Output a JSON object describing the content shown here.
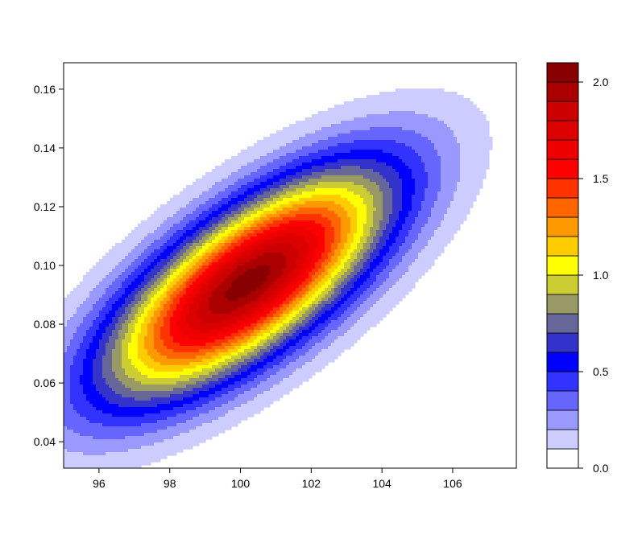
{
  "chart_data": {
    "type": "filled-contour",
    "title": "",
    "xlabel": "",
    "ylabel": "",
    "xlim": [
      95,
      107.8
    ],
    "ylim": [
      0.031,
      0.169
    ],
    "x_ticks": [
      {
        "value": 96,
        "label": "96"
      },
      {
        "value": 98,
        "label": "98"
      },
      {
        "value": 100,
        "label": "100"
      },
      {
        "value": 102,
        "label": "102"
      },
      {
        "value": 104,
        "label": "104"
      },
      {
        "value": 106,
        "label": "106"
      }
    ],
    "y_ticks": [
      {
        "value": 0.04,
        "label": "0.04"
      },
      {
        "value": 0.06,
        "label": "0.06"
      },
      {
        "value": 0.08,
        "label": "0.08"
      },
      {
        "value": 0.1,
        "label": "0.10"
      },
      {
        "value": 0.12,
        "label": "0.12"
      },
      {
        "value": 0.14,
        "label": "0.14"
      },
      {
        "value": 0.16,
        "label": "0.16"
      }
    ],
    "density": {
      "peak_x": 100.2,
      "peak_y": 0.094,
      "peak_value": 2.05,
      "sd_x": 2.8,
      "sd_y": 0.027,
      "correlation": 0.72
    },
    "levels": [
      0.0,
      0.1,
      0.2,
      0.3,
      0.4,
      0.5,
      0.6,
      0.7,
      0.8,
      0.9,
      1.0,
      1.1,
      1.2,
      1.3,
      1.4,
      1.5,
      1.6,
      1.7,
      1.8,
      1.9,
      2.0,
      2.1
    ],
    "level_colors": [
      "#ffffff",
      "#ccccff",
      "#9999ff",
      "#6666ff",
      "#3333ff",
      "#0000ff",
      "#3333cc",
      "#666699",
      "#999966",
      "#cccc33",
      "#ffff00",
      "#ffcc00",
      "#ff9900",
      "#ff6600",
      "#ff3300",
      "#ff0000",
      "#ee0000",
      "#dd0000",
      "#cc0000",
      "#aa0000",
      "#880000"
    ],
    "colorbar": {
      "range": [
        0.0,
        2.1
      ],
      "ticks": [
        {
          "value": 0.0,
          "label": "0.0"
        },
        {
          "value": 0.5,
          "label": "0.5"
        },
        {
          "value": 1.0,
          "label": "1.0"
        },
        {
          "value": 1.5,
          "label": "1.5"
        },
        {
          "value": 2.0,
          "label": "2.0"
        }
      ]
    },
    "grid": false,
    "legend": "colorbar-right"
  }
}
